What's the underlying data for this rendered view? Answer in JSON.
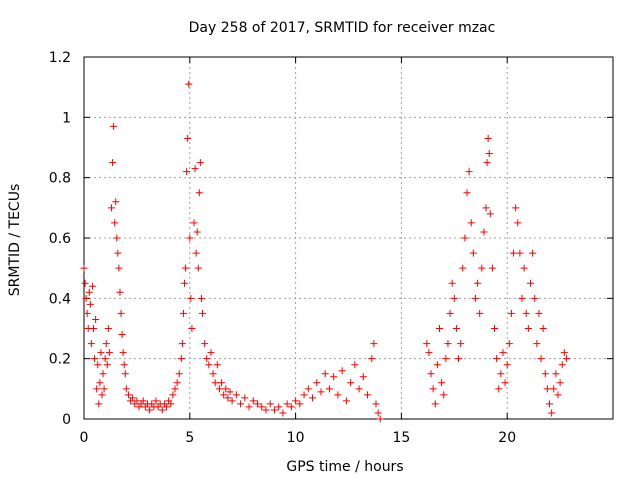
{
  "chart_data": {
    "type": "scatter",
    "title": "Day 258 of 2017, SRMTID for receiver mzac",
    "xlabel": "GPS time / hours",
    "ylabel": "SRMTID / TECUs",
    "xlim": [
      0,
      25
    ],
    "ylim": [
      0,
      1.2
    ],
    "x_ticks": [
      0,
      5,
      10,
      15,
      20
    ],
    "x_tick_labels": [
      "0",
      "5",
      "10",
      "15",
      "20"
    ],
    "y_ticks": [
      0,
      0.2,
      0.4,
      0.6,
      0.8,
      1.0,
      1.2
    ],
    "y_tick_labels": [
      "0",
      "0.2",
      "0.4",
      "0.6",
      "0.8",
      "1",
      "1.2"
    ],
    "grid": true,
    "marker": "+",
    "series": [
      {
        "name": "SRMTID",
        "color": "#ff0000",
        "points": [
          [
            0.0,
            0.5
          ],
          [
            0.05,
            0.45
          ],
          [
            0.1,
            0.4
          ],
          [
            0.15,
            0.35
          ],
          [
            0.2,
            0.3
          ],
          [
            0.25,
            0.42
          ],
          [
            0.3,
            0.38
          ],
          [
            0.35,
            0.25
          ],
          [
            0.4,
            0.44
          ],
          [
            0.45,
            0.3
          ],
          [
            0.5,
            0.2
          ],
          [
            0.55,
            0.33
          ],
          [
            0.6,
            0.1
          ],
          [
            0.65,
            0.18
          ],
          [
            0.7,
            0.05
          ],
          [
            0.75,
            0.12
          ],
          [
            0.8,
            0.22
          ],
          [
            0.85,
            0.08
          ],
          [
            0.9,
            0.15
          ],
          [
            0.95,
            0.1
          ],
          [
            1.0,
            0.2
          ],
          [
            1.05,
            0.25
          ],
          [
            1.1,
            0.18
          ],
          [
            1.15,
            0.3
          ],
          [
            1.2,
            0.22
          ],
          [
            1.3,
            0.7
          ],
          [
            1.35,
            0.85
          ],
          [
            1.4,
            0.97
          ],
          [
            1.45,
            0.65
          ],
          [
            1.5,
            0.72
          ],
          [
            1.55,
            0.6
          ],
          [
            1.6,
            0.55
          ],
          [
            1.65,
            0.5
          ],
          [
            1.7,
            0.42
          ],
          [
            1.75,
            0.35
          ],
          [
            1.8,
            0.28
          ],
          [
            1.85,
            0.22
          ],
          [
            1.9,
            0.18
          ],
          [
            1.95,
            0.15
          ],
          [
            2.0,
            0.1
          ],
          [
            2.1,
            0.08
          ],
          [
            2.2,
            0.06
          ],
          [
            2.3,
            0.07
          ],
          [
            2.4,
            0.05
          ],
          [
            2.5,
            0.06
          ],
          [
            2.6,
            0.04
          ],
          [
            2.7,
            0.05
          ],
          [
            2.8,
            0.06
          ],
          [
            2.9,
            0.04
          ],
          [
            3.0,
            0.05
          ],
          [
            3.1,
            0.03
          ],
          [
            3.2,
            0.05
          ],
          [
            3.3,
            0.04
          ],
          [
            3.4,
            0.06
          ],
          [
            3.5,
            0.04
          ],
          [
            3.6,
            0.05
          ],
          [
            3.7,
            0.03
          ],
          [
            3.8,
            0.05
          ],
          [
            3.9,
            0.04
          ],
          [
            4.0,
            0.06
          ],
          [
            4.1,
            0.05
          ],
          [
            4.2,
            0.08
          ],
          [
            4.3,
            0.1
          ],
          [
            4.4,
            0.12
          ],
          [
            4.5,
            0.15
          ],
          [
            4.6,
            0.2
          ],
          [
            4.65,
            0.25
          ],
          [
            4.7,
            0.35
          ],
          [
            4.75,
            0.45
          ],
          [
            4.8,
            0.5
          ],
          [
            4.85,
            0.82
          ],
          [
            4.9,
            0.93
          ],
          [
            4.95,
            1.11
          ],
          [
            5.0,
            0.6
          ],
          [
            5.05,
            0.4
          ],
          [
            5.1,
            0.3
          ],
          [
            5.2,
            0.65
          ],
          [
            5.25,
            0.83
          ],
          [
            5.3,
            0.55
          ],
          [
            5.35,
            0.62
          ],
          [
            5.4,
            0.5
          ],
          [
            5.45,
            0.75
          ],
          [
            5.5,
            0.85
          ],
          [
            5.55,
            0.4
          ],
          [
            5.6,
            0.35
          ],
          [
            5.7,
            0.25
          ],
          [
            5.8,
            0.2
          ],
          [
            5.9,
            0.18
          ],
          [
            6.0,
            0.22
          ],
          [
            6.1,
            0.15
          ],
          [
            6.2,
            0.12
          ],
          [
            6.3,
            0.18
          ],
          [
            6.4,
            0.1
          ],
          [
            6.5,
            0.12
          ],
          [
            6.6,
            0.08
          ],
          [
            6.7,
            0.1
          ],
          [
            6.8,
            0.07
          ],
          [
            6.9,
            0.09
          ],
          [
            7.0,
            0.06
          ],
          [
            7.2,
            0.08
          ],
          [
            7.4,
            0.05
          ],
          [
            7.6,
            0.07
          ],
          [
            7.8,
            0.04
          ],
          [
            8.0,
            0.06
          ],
          [
            8.2,
            0.05
          ],
          [
            8.4,
            0.04
          ],
          [
            8.6,
            0.03
          ],
          [
            8.8,
            0.05
          ],
          [
            9.0,
            0.03
          ],
          [
            9.2,
            0.04
          ],
          [
            9.4,
            0.02
          ],
          [
            9.6,
            0.05
          ],
          [
            9.8,
            0.04
          ],
          [
            10.0,
            0.06
          ],
          [
            10.2,
            0.05
          ],
          [
            10.4,
            0.08
          ],
          [
            10.6,
            0.1
          ],
          [
            10.8,
            0.07
          ],
          [
            11.0,
            0.12
          ],
          [
            11.2,
            0.09
          ],
          [
            11.4,
            0.15
          ],
          [
            11.6,
            0.1
          ],
          [
            11.8,
            0.14
          ],
          [
            12.0,
            0.08
          ],
          [
            12.2,
            0.16
          ],
          [
            12.4,
            0.06
          ],
          [
            12.6,
            0.12
          ],
          [
            12.8,
            0.18
          ],
          [
            13.0,
            0.1
          ],
          [
            13.2,
            0.14
          ],
          [
            13.4,
            0.08
          ],
          [
            13.6,
            0.2
          ],
          [
            13.7,
            0.25
          ],
          [
            13.8,
            0.05
          ],
          [
            13.9,
            0.02
          ],
          [
            14.0,
            0.0
          ],
          [
            16.2,
            0.25
          ],
          [
            16.3,
            0.22
          ],
          [
            16.4,
            0.15
          ],
          [
            16.5,
            0.1
          ],
          [
            16.6,
            0.05
          ],
          [
            16.7,
            0.18
          ],
          [
            16.8,
            0.3
          ],
          [
            16.9,
            0.12
          ],
          [
            17.0,
            0.08
          ],
          [
            17.1,
            0.2
          ],
          [
            17.2,
            0.25
          ],
          [
            17.3,
            0.35
          ],
          [
            17.4,
            0.45
          ],
          [
            17.5,
            0.4
          ],
          [
            17.6,
            0.3
          ],
          [
            17.7,
            0.2
          ],
          [
            17.8,
            0.25
          ],
          [
            17.9,
            0.5
          ],
          [
            18.0,
            0.6
          ],
          [
            18.1,
            0.75
          ],
          [
            18.2,
            0.82
          ],
          [
            18.3,
            0.65
          ],
          [
            18.4,
            0.55
          ],
          [
            18.5,
            0.4
          ],
          [
            18.6,
            0.45
          ],
          [
            18.7,
            0.35
          ],
          [
            18.8,
            0.5
          ],
          [
            18.9,
            0.62
          ],
          [
            19.0,
            0.7
          ],
          [
            19.05,
            0.85
          ],
          [
            19.1,
            0.93
          ],
          [
            19.15,
            0.88
          ],
          [
            19.2,
            0.68
          ],
          [
            19.3,
            0.5
          ],
          [
            19.4,
            0.3
          ],
          [
            19.5,
            0.2
          ],
          [
            19.6,
            0.1
          ],
          [
            19.7,
            0.15
          ],
          [
            19.8,
            0.22
          ],
          [
            19.9,
            0.12
          ],
          [
            20.0,
            0.18
          ],
          [
            20.1,
            0.25
          ],
          [
            20.2,
            0.35
          ],
          [
            20.3,
            0.55
          ],
          [
            20.4,
            0.7
          ],
          [
            20.5,
            0.65
          ],
          [
            20.6,
            0.55
          ],
          [
            20.7,
            0.4
          ],
          [
            20.8,
            0.5
          ],
          [
            20.9,
            0.35
          ],
          [
            21.0,
            0.3
          ],
          [
            21.1,
            0.45
          ],
          [
            21.2,
            0.55
          ],
          [
            21.3,
            0.4
          ],
          [
            21.4,
            0.25
          ],
          [
            21.5,
            0.35
          ],
          [
            21.6,
            0.2
          ],
          [
            21.7,
            0.3
          ],
          [
            21.8,
            0.15
          ],
          [
            21.9,
            0.1
          ],
          [
            22.0,
            0.05
          ],
          [
            22.1,
            0.02
          ],
          [
            22.2,
            0.1
          ],
          [
            22.3,
            0.15
          ],
          [
            22.4,
            0.08
          ],
          [
            22.5,
            0.12
          ],
          [
            22.6,
            0.18
          ],
          [
            22.7,
            0.22
          ],
          [
            22.8,
            0.2
          ]
        ]
      }
    ]
  }
}
